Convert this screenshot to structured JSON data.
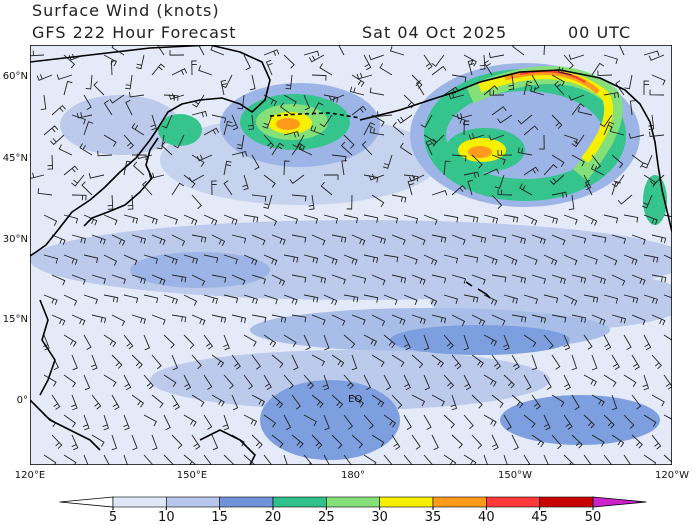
{
  "header": {
    "title": "Surface Wind (knots)",
    "subtitle": "GFS 222 Hour Forecast",
    "date": "Sat 04 Oct 2025",
    "time": "00 UTC"
  },
  "map": {
    "lat_labels": [
      "60°N",
      "45°N",
      "30°N",
      "15°N",
      "0°"
    ],
    "lon_labels": [
      "120°E",
      "150°E",
      "180°",
      "150°W",
      "120°W"
    ],
    "equator_label": "EQ"
  },
  "colorbar": {
    "ticks": [
      5,
      10,
      15,
      20,
      25,
      30,
      35,
      40,
      45,
      50
    ],
    "colors": [
      "#ffffff",
      "#dfe6f6",
      "#b6c6ec",
      "#6f94dc",
      "#2fc08c",
      "#86e07a",
      "#f5f000",
      "#ff9a1a",
      "#ff3a3a",
      "#c80000",
      "#cc22cc"
    ]
  }
}
